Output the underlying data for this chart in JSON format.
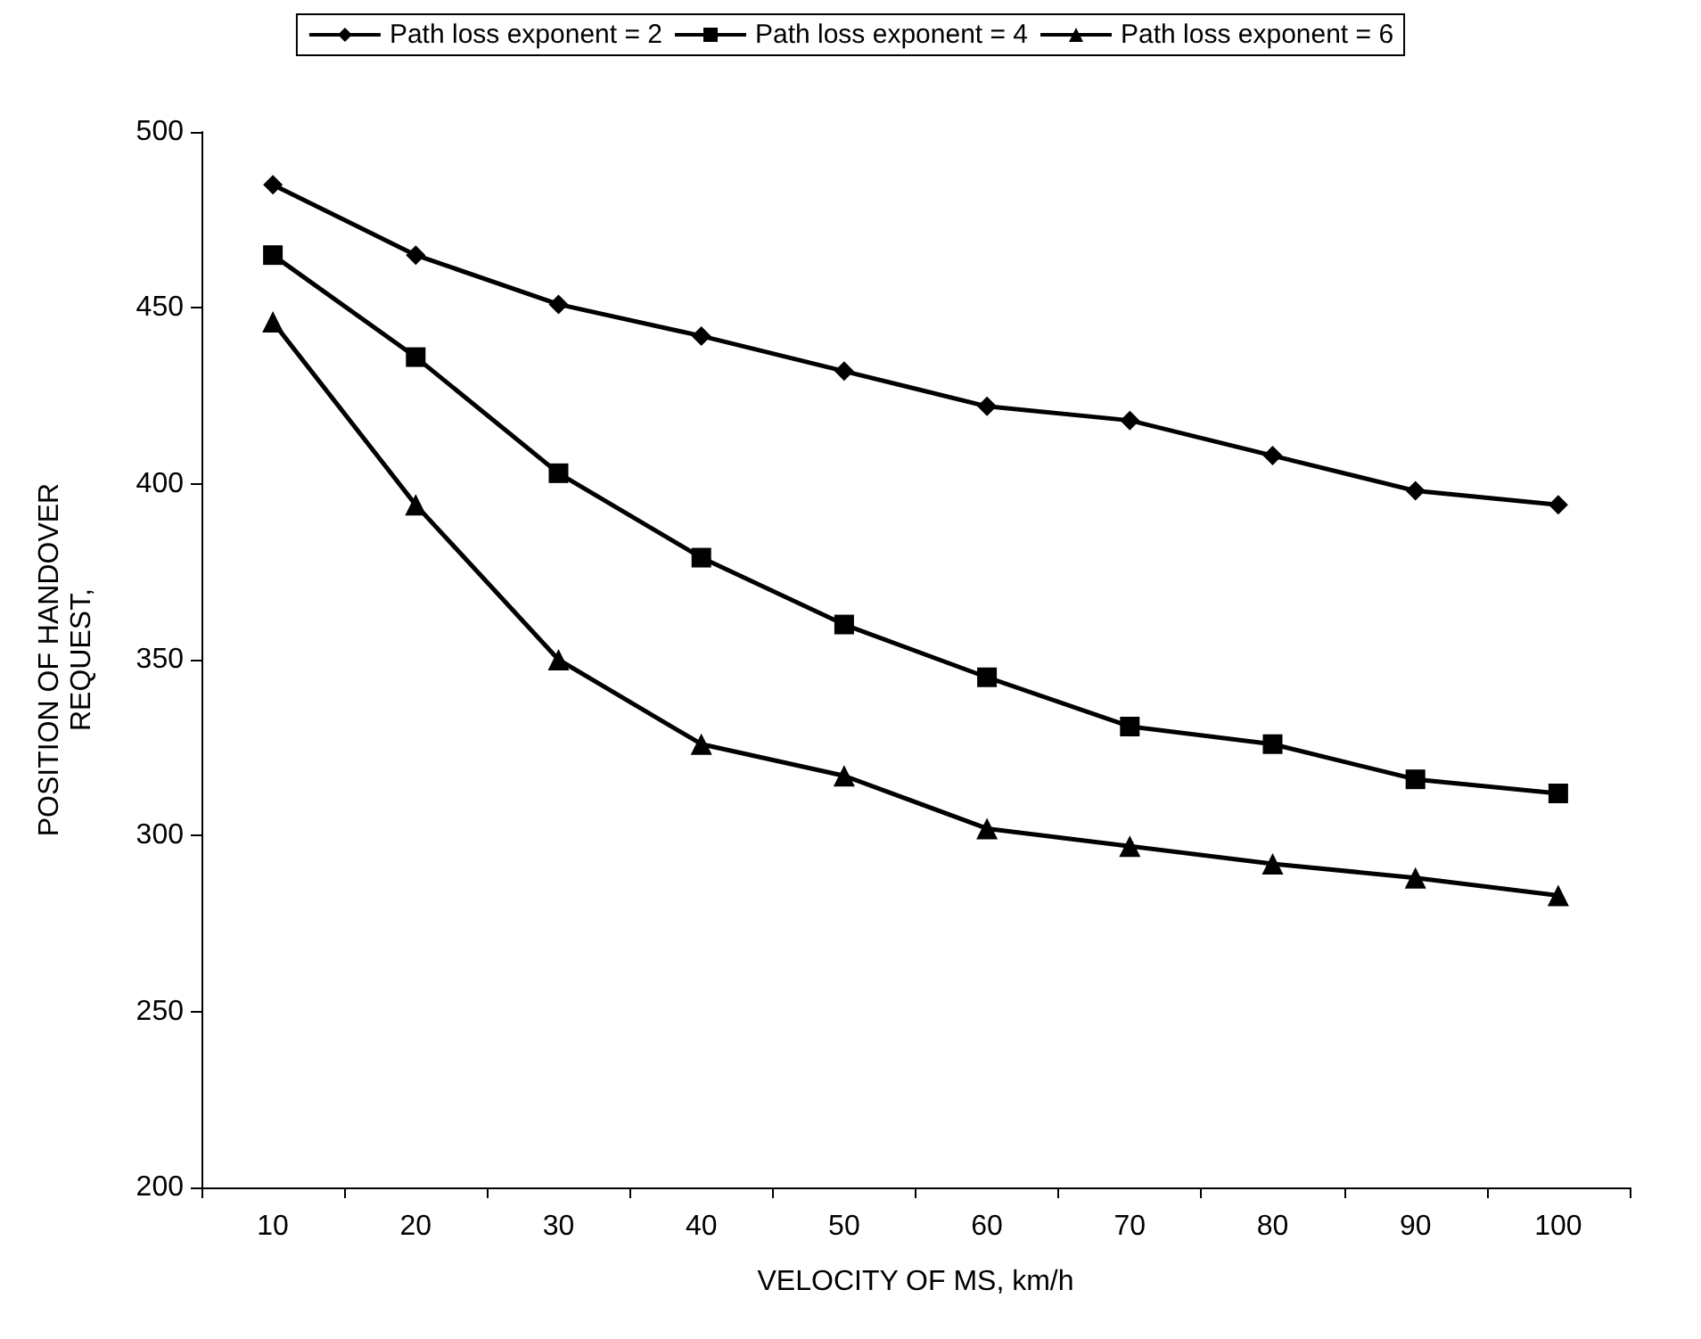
{
  "chart_data": {
    "type": "line",
    "xlabel": "VELOCITY OF MS, km/h",
    "ylabel": "POSITION OF HANDOVER REQUEST,",
    "categories": [
      "10",
      "20",
      "30",
      "40",
      "50",
      "60",
      "70",
      "80",
      "90",
      "100"
    ],
    "series": [
      {
        "name": "Path loss exponent = 2",
        "color": "#000000",
        "marker": "diamond",
        "values": [
          485,
          465,
          451,
          442,
          432,
          422,
          418,
          408,
          398,
          394
        ]
      },
      {
        "name": "Path loss exponent = 4",
        "color": "#000000",
        "marker": "square",
        "values": [
          465,
          436,
          403,
          379,
          360,
          345,
          331,
          326,
          316,
          312
        ]
      },
      {
        "name": "Path loss exponent = 6",
        "color": "#000000",
        "marker": "triangle",
        "values": [
          446,
          394,
          350,
          326,
          317,
          302,
          297,
          292,
          288,
          283
        ]
      }
    ],
    "ylim": [
      200,
      500
    ],
    "yticks": [
      200,
      250,
      300,
      350,
      400,
      450,
      500
    ],
    "grid": false,
    "legend": "top",
    "line_style": "solid"
  }
}
